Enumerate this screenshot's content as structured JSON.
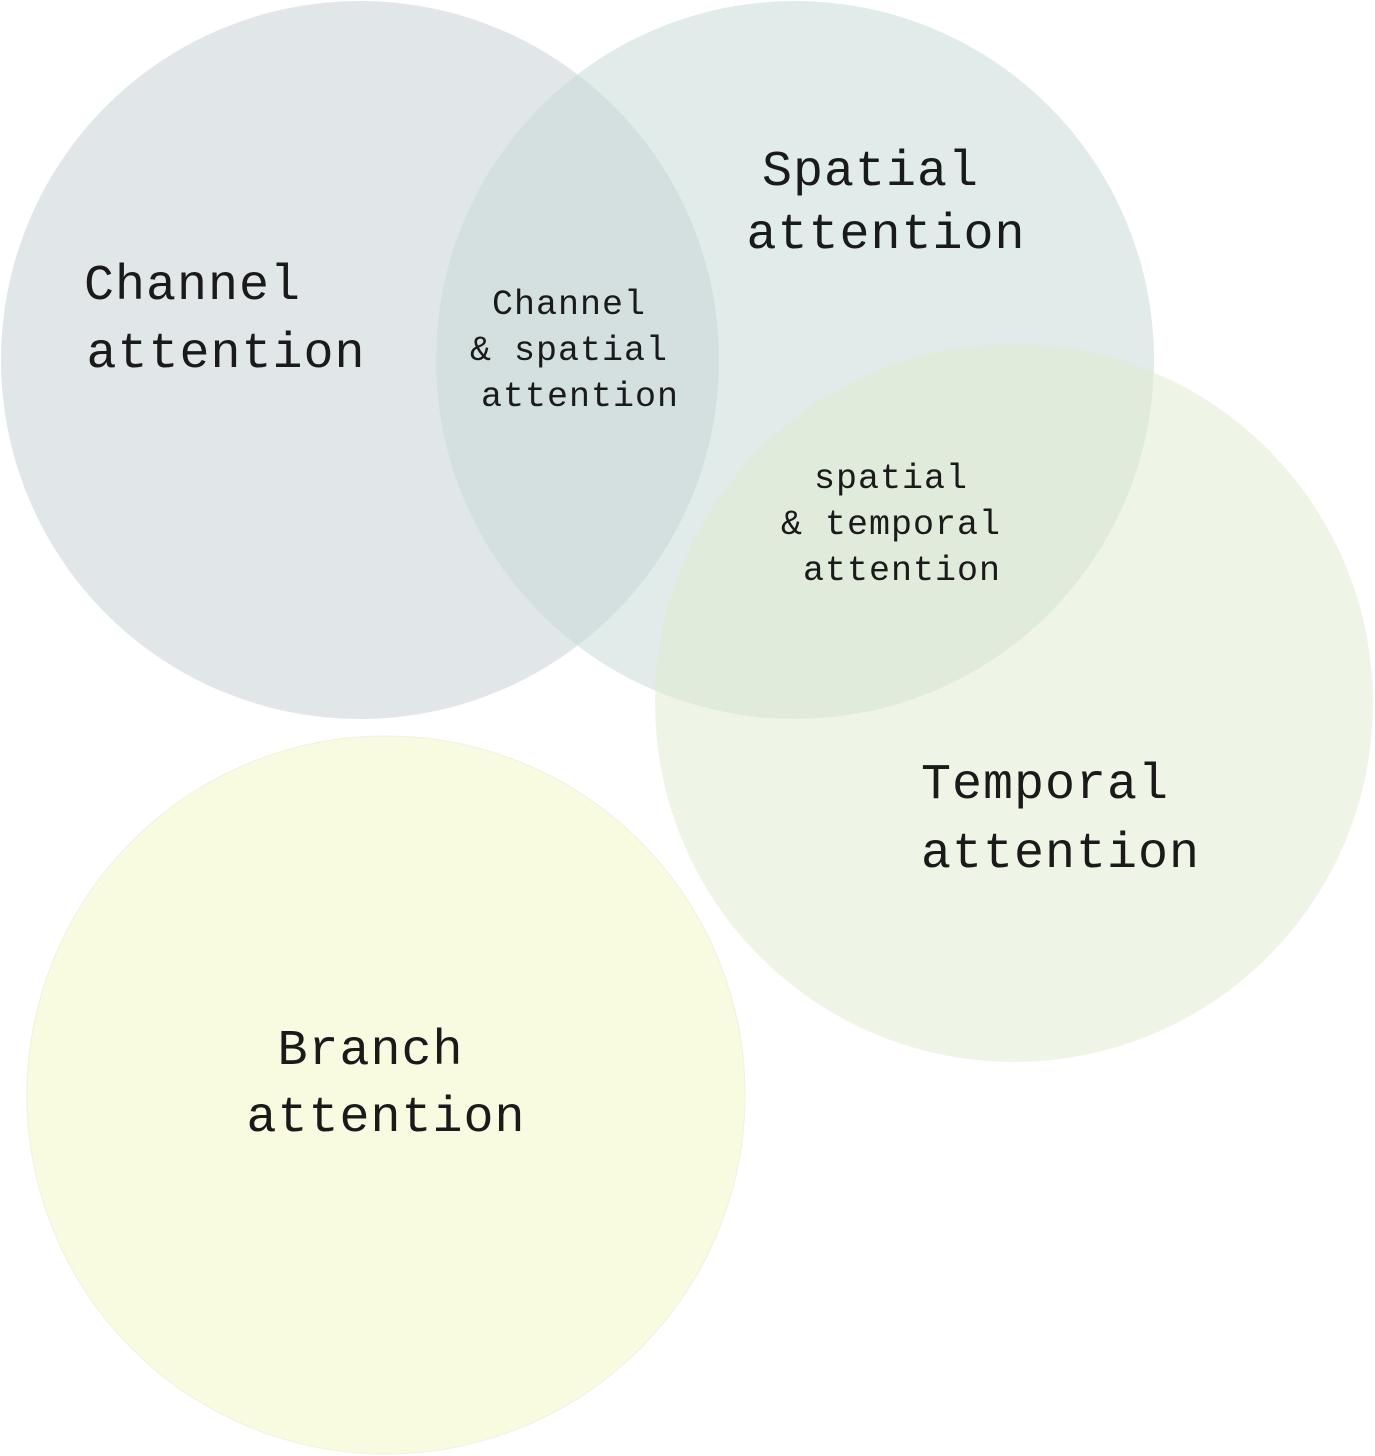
{
  "sets": {
    "channel": {
      "line1": "Channel",
      "line2": "attention",
      "color": "#c3cdd2"
    },
    "spatial": {
      "line1": "Spatial",
      "line2": "attention",
      "color": "#c9dad7"
    },
    "temporal": {
      "line1": "Temporal",
      "line2": "attention",
      "color": "#dfebcd"
    },
    "branch": {
      "line1": "Branch",
      "line2": "attention",
      "color": "#f5f9d6"
    }
  },
  "intersections": {
    "channel_spatial": {
      "line1": "Channel",
      "line2": "& spatial",
      "line3": "attention"
    },
    "spatial_temporal": {
      "line1": "spatial",
      "line2": "& temporal",
      "line3": "attention"
    }
  }
}
